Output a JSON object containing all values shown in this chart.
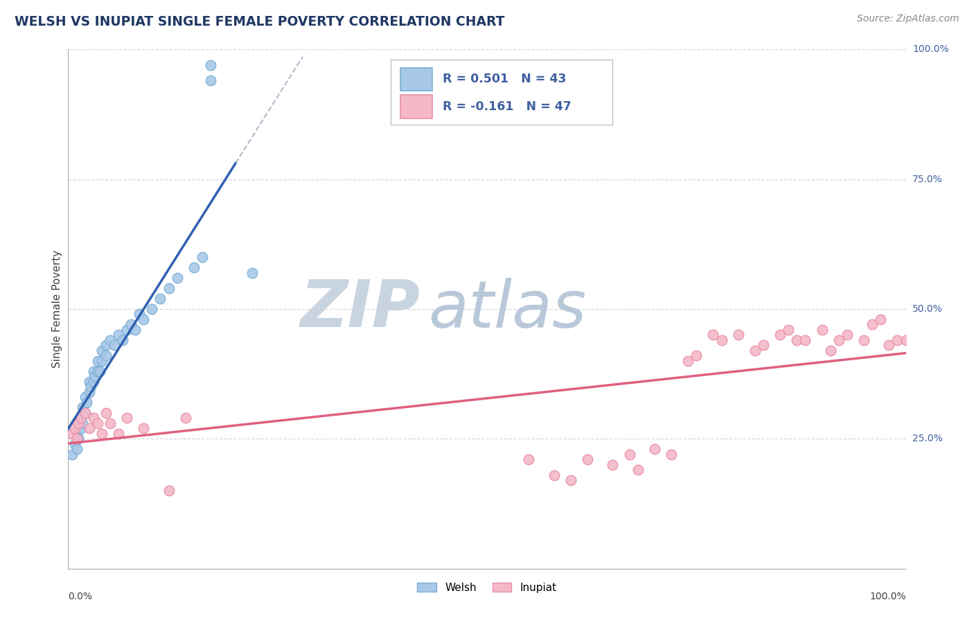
{
  "title": "WELSH VS INUPIAT SINGLE FEMALE POVERTY CORRELATION CHART",
  "source_text": "Source: ZipAtlas.com",
  "ylabel": "Single Female Poverty",
  "welsh_R": 0.501,
  "welsh_N": 43,
  "inupiat_R": -0.161,
  "inupiat_N": 47,
  "welsh_scatter_color": "#a8c8e8",
  "welsh_edge_color": "#7bafd4",
  "inupiat_scatter_color": "#f4b8c8",
  "inupiat_edge_color": "#e890a8",
  "welsh_line_color": "#3060b0",
  "welsh_dash_color": "#b0b8c8",
  "inupiat_line_color": "#e06080",
  "background_color": "#ffffff",
  "grid_color": "#c8ccd0",
  "watermark_zip_color": "#c8d4e0",
  "watermark_atlas_color": "#b8c8d8",
  "title_color": "#203864",
  "right_label_color": "#4060a0",
  "welsh_x": [
    0.005,
    0.008,
    0.01,
    0.01,
    0.012,
    0.015,
    0.015,
    0.017,
    0.017,
    0.02,
    0.02,
    0.022,
    0.025,
    0.025,
    0.027,
    0.03,
    0.03,
    0.032,
    0.035,
    0.035,
    0.038,
    0.04,
    0.04,
    0.045,
    0.045,
    0.05,
    0.055,
    0.06,
    0.065,
    0.07,
    0.075,
    0.08,
    0.085,
    0.09,
    0.1,
    0.11,
    0.12,
    0.13,
    0.15,
    0.16,
    0.17,
    0.17,
    0.22
  ],
  "welsh_y": [
    0.22,
    0.24,
    0.23,
    0.26,
    0.25,
    0.27,
    0.29,
    0.31,
    0.28,
    0.3,
    0.33,
    0.32,
    0.34,
    0.36,
    0.35,
    0.36,
    0.38,
    0.37,
    0.38,
    0.4,
    0.38,
    0.4,
    0.42,
    0.41,
    0.43,
    0.44,
    0.43,
    0.45,
    0.44,
    0.46,
    0.47,
    0.46,
    0.49,
    0.48,
    0.5,
    0.52,
    0.54,
    0.56,
    0.58,
    0.6,
    0.94,
    0.97,
    0.57
  ],
  "inupiat_x": [
    0.005,
    0.008,
    0.01,
    0.012,
    0.015,
    0.02,
    0.025,
    0.03,
    0.035,
    0.04,
    0.045,
    0.05,
    0.06,
    0.07,
    0.09,
    0.12,
    0.14,
    0.55,
    0.58,
    0.6,
    0.62,
    0.65,
    0.67,
    0.68,
    0.7,
    0.72,
    0.74,
    0.75,
    0.77,
    0.78,
    0.8,
    0.82,
    0.83,
    0.85,
    0.86,
    0.87,
    0.88,
    0.9,
    0.91,
    0.92,
    0.93,
    0.95,
    0.96,
    0.97,
    0.98,
    0.99,
    1.0
  ],
  "inupiat_y": [
    0.26,
    0.27,
    0.25,
    0.28,
    0.29,
    0.3,
    0.27,
    0.29,
    0.28,
    0.26,
    0.3,
    0.28,
    0.26,
    0.29,
    0.27,
    0.15,
    0.29,
    0.21,
    0.18,
    0.17,
    0.21,
    0.2,
    0.22,
    0.19,
    0.23,
    0.22,
    0.4,
    0.41,
    0.45,
    0.44,
    0.45,
    0.42,
    0.43,
    0.45,
    0.46,
    0.44,
    0.44,
    0.46,
    0.42,
    0.44,
    0.45,
    0.44,
    0.47,
    0.48,
    0.43,
    0.44,
    0.44
  ],
  "xlim": [
    0.0,
    1.0
  ],
  "ylim": [
    0.0,
    1.0
  ],
  "marker_size": 110
}
